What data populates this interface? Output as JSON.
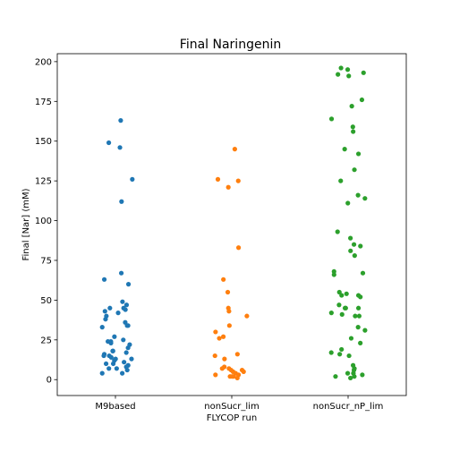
{
  "chart_data": {
    "type": "scatter",
    "title": "Final Naringenin",
    "xlabel": "FLYCOP run",
    "ylabel": "Final [Nar] (mM)",
    "categories": [
      "M9based",
      "nonSucr_lim",
      "nonSucr_nP_lim"
    ],
    "ylim": [
      -10,
      205
    ],
    "yticks": [
      0,
      25,
      50,
      75,
      100,
      125,
      150,
      175,
      200
    ],
    "grid": false,
    "legend": "none",
    "series": [
      {
        "category": "M9based",
        "color": "#1f77b4",
        "values": [
          163,
          149,
          146,
          126,
          112,
          67,
          63,
          60,
          49,
          47,
          45,
          45,
          44,
          43,
          42,
          40,
          38,
          36,
          34,
          34,
          33,
          27,
          25,
          24,
          24,
          23,
          22,
          20,
          18,
          18,
          17,
          16,
          15,
          15,
          14,
          13,
          13,
          12,
          11,
          10,
          10,
          9,
          8,
          7,
          7,
          6,
          4,
          4
        ]
      },
      {
        "category": "nonSucr_lim",
        "color": "#ff7f0e",
        "values": [
          145,
          126,
          125,
          121,
          83,
          63,
          55,
          45,
          43,
          40,
          34,
          30,
          27,
          26,
          16,
          15,
          13,
          8,
          7,
          7,
          6,
          6,
          5,
          5,
          4,
          3,
          3,
          2,
          2,
          2,
          1
        ]
      },
      {
        "category": "nonSucr_nP_lim",
        "color": "#2ca02c",
        "values": [
          196,
          195,
          193,
          192,
          191,
          176,
          172,
          164,
          159,
          156,
          145,
          142,
          132,
          125,
          116,
          114,
          111,
          93,
          89,
          85,
          84,
          81,
          78,
          68,
          67,
          66,
          55,
          54,
          53,
          53,
          52,
          47,
          45,
          45,
          45,
          42,
          41,
          40,
          40,
          33,
          31,
          26,
          23,
          19,
          17,
          16,
          15,
          9,
          7,
          6,
          4,
          4,
          3,
          2,
          2,
          1
        ]
      }
    ]
  }
}
